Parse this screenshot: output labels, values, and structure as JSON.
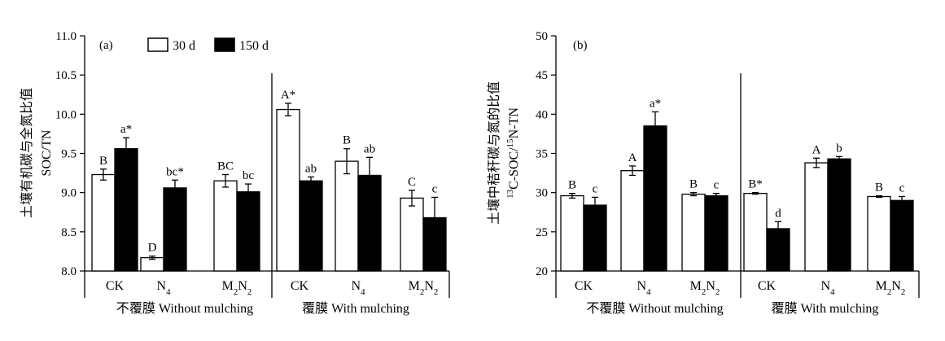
{
  "chart_data": [
    {
      "type": "bar",
      "panel_label": "(a)",
      "ylabel_cn": "土壤有机碳与全氮比值",
      "ylabel_en": "SOC/TN",
      "ylim": [
        8.0,
        11.0
      ],
      "yticks": [
        "8.0",
        "8.5",
        "9.0",
        "9.5",
        "10.0",
        "10.5",
        "11.0"
      ],
      "legend": {
        "placement": "top-left",
        "entries": [
          "30 d",
          "150 d"
        ]
      },
      "groups": [
        {
          "name": "不覆膜 Without mulching",
          "categories": [
            "CK",
            "N4",
            "M2N2"
          ]
        },
        {
          "name": "覆膜 With mulching",
          "categories": [
            "CK",
            "N4",
            "M2N2"
          ]
        }
      ],
      "series": [
        {
          "name": "30 d",
          "values": [
            9.23,
            8.17,
            9.15,
            10.06,
            9.4,
            8.93
          ],
          "errors": [
            0.07,
            0.02,
            0.08,
            0.08,
            0.16,
            0.1
          ],
          "labels": [
            "B",
            "D",
            "BC",
            "A*",
            "B",
            "C"
          ]
        },
        {
          "name": "150 d",
          "values": [
            9.56,
            9.06,
            9.01,
            9.15,
            9.22,
            8.68
          ],
          "errors": [
            0.14,
            0.1,
            0.1,
            0.05,
            0.23,
            0.26
          ],
          "labels": [
            "a*",
            "bc*",
            "bc",
            "ab",
            "ab",
            "c"
          ]
        }
      ]
    },
    {
      "type": "bar",
      "panel_label": "(b)",
      "ylabel_cn": "土壤中秸秆碳与氮的比值",
      "ylabel_en": "13C-SOC/15N-TN",
      "ylim": [
        20,
        50
      ],
      "yticks": [
        "20",
        "25",
        "30",
        "35",
        "40",
        "45",
        "50"
      ],
      "groups": [
        {
          "name": "不覆膜 Without mulching",
          "categories": [
            "CK",
            "N4",
            "M2N2"
          ]
        },
        {
          "name": "覆膜 With mulching",
          "categories": [
            "CK",
            "N4",
            "M2N2"
          ]
        }
      ],
      "series": [
        {
          "name": "30 d",
          "values": [
            29.6,
            32.8,
            29.8,
            29.9,
            33.8,
            29.5
          ],
          "errors": [
            0.3,
            0.6,
            0.2,
            0.1,
            0.6,
            0.1
          ],
          "labels": [
            "B",
            "A",
            "B",
            "B*",
            "A",
            "B"
          ]
        },
        {
          "name": "150 d",
          "values": [
            28.4,
            38.5,
            29.6,
            25.4,
            34.3,
            29.0
          ],
          "errors": [
            1.0,
            1.8,
            0.3,
            0.9,
            0.3,
            0.5
          ],
          "labels": [
            "c",
            "a*",
            "c",
            "d",
            "b",
            "c"
          ]
        }
      ]
    }
  ]
}
